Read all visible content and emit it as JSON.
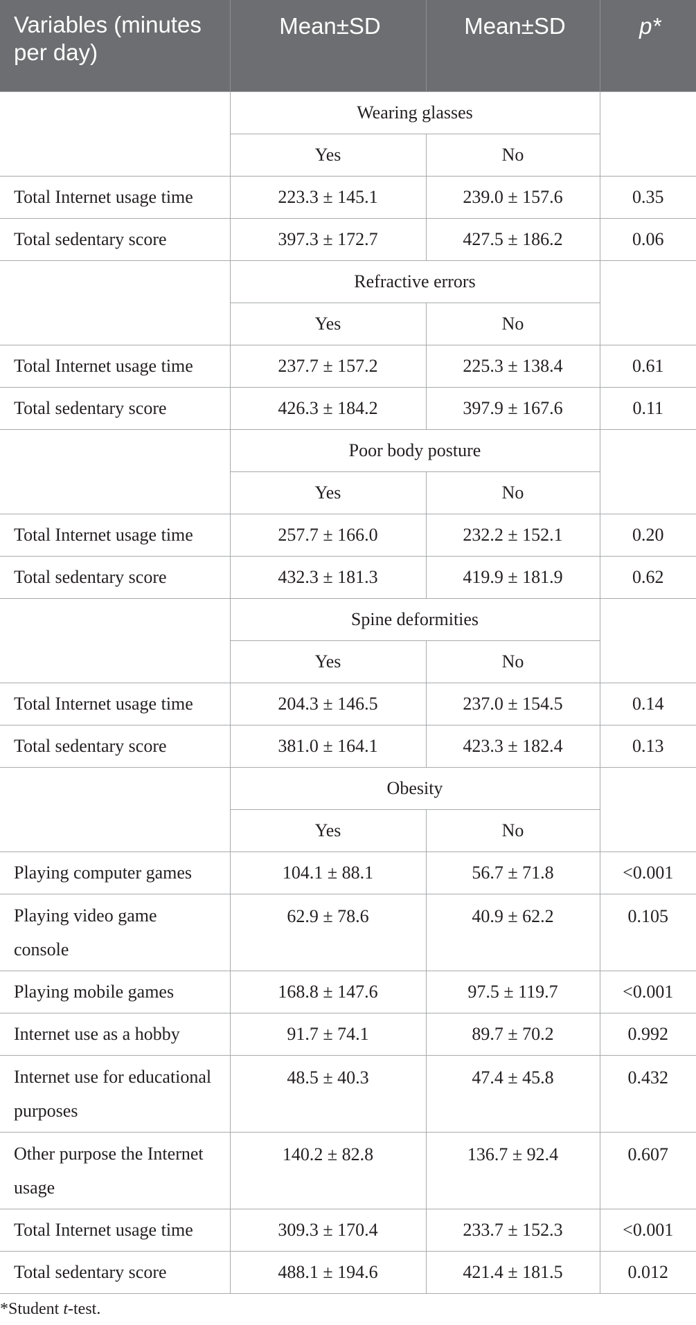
{
  "header": {
    "variables": "Variables (minutes per day)",
    "mean_sd_1": "Mean±SD",
    "mean_sd_2": "Mean±SD",
    "p": "p*"
  },
  "groups": [
    {
      "name": "Wearing glasses",
      "yes": "Yes",
      "no": "No",
      "rows": [
        {
          "label": "Total Internet usage time",
          "yes": "223.3 ± 145.1",
          "no": "239.0 ± 157.6",
          "p": "0.35"
        },
        {
          "label": "Total sedentary score",
          "yes": "397.3 ± 172.7",
          "no": "427.5 ± 186.2",
          "p": "0.06"
        }
      ]
    },
    {
      "name": "Refractive errors",
      "yes": "Yes",
      "no": "No",
      "rows": [
        {
          "label": "Total Internet usage time",
          "yes": "237.7 ± 157.2",
          "no": "225.3 ± 138.4",
          "p": "0.61"
        },
        {
          "label": "Total sedentary score",
          "yes": "426.3 ± 184.2",
          "no": "397.9 ± 167.6",
          "p": "0.11"
        }
      ]
    },
    {
      "name": "Poor body posture",
      "yes": "Yes",
      "no": "No",
      "rows": [
        {
          "label": "Total Internet usage time",
          "yes": "257.7 ± 166.0",
          "no": "232.2 ± 152.1",
          "p": "0.20"
        },
        {
          "label": "Total sedentary score",
          "yes": "432.3 ± 181.3",
          "no": "419.9 ± 181.9",
          "p": "0.62"
        }
      ]
    },
    {
      "name": "Spine deformities",
      "yes": "Yes",
      "no": "No",
      "rows": [
        {
          "label": "Total Internet usage time",
          "yes": "204.3 ± 146.5",
          "no": "237.0 ± 154.5",
          "p": "0.14"
        },
        {
          "label": "Total sedentary score",
          "yes": "381.0 ± 164.1",
          "no": "423.3 ± 182.4",
          "p": "0.13"
        }
      ]
    },
    {
      "name": "Obesity",
      "yes": "Yes",
      "no": "No",
      "rows": [
        {
          "label": "Playing computer games",
          "yes": "104.1 ± 88.1",
          "no": "56.7 ± 71.8",
          "p": "<0.001"
        },
        {
          "label": "Playing video game console",
          "yes": "62.9 ± 78.6",
          "no": "40.9 ± 62.2",
          "p": "0.105"
        },
        {
          "label": "Playing mobile games",
          "yes": "168.8 ± 147.6",
          "no": "97.5 ± 119.7",
          "p": "<0.001"
        },
        {
          "label": "Internet use as a hobby",
          "yes": "91.7 ± 74.1",
          "no": "89.7 ± 70.2",
          "p": "0.992"
        },
        {
          "label": "Internet use for educational purposes",
          "yes": "48.5 ± 40.3",
          "no": "47.4 ± 45.8",
          "p": "0.432"
        },
        {
          "label": "Other purpose the Internet usage",
          "yes": "140.2 ± 82.8",
          "no": "136.7 ± 92.4",
          "p": "0.607"
        },
        {
          "label": "Total Internet usage time",
          "yes": "309.3 ± 170.4",
          "no": "233.7 ± 152.3",
          "p": "<0.001"
        },
        {
          "label": "Total sedentary score",
          "yes": "488.1 ± 194.6",
          "no": "421.4 ± 181.5",
          "p": "0.012"
        }
      ]
    }
  ],
  "footnote": {
    "mark": "*Student ",
    "t": "t",
    "rest": "-test."
  }
}
